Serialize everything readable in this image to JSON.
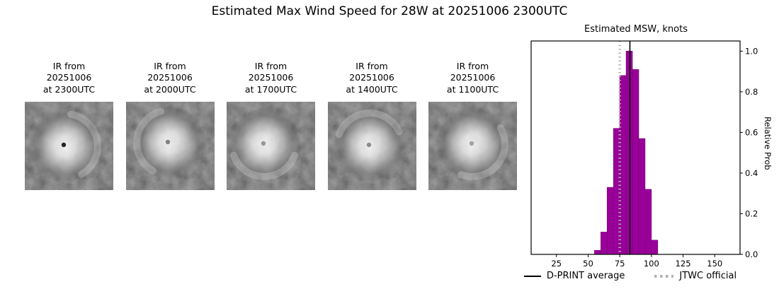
{
  "title": "Estimated Max Wind Speed for 28W at 20251006 2300UTC",
  "ir_panels": [
    {
      "label": "IR from\n20251006\nat 2300UTC"
    },
    {
      "label": "IR from\n20251006\nat 2000UTC"
    },
    {
      "label": "IR from\n20251006\nat 1700UTC"
    },
    {
      "label": "IR from\n20251006\nat 1400UTC"
    },
    {
      "label": "IR from\n20251006\nat 1100UTC"
    }
  ],
  "chart_data": {
    "type": "bar",
    "title": "Estimated MSW, knots",
    "ylabel": "Relative Prob",
    "xlabel": "",
    "xlim": [
      5,
      170
    ],
    "ylim": [
      0,
      1.05
    ],
    "xticks": [
      25,
      50,
      75,
      100,
      125,
      150
    ],
    "yticks": [
      0.0,
      0.2,
      0.4,
      0.6,
      0.8,
      1.0
    ],
    "bin_width": 5,
    "bins": [
      {
        "start": 55,
        "value": 0.02
      },
      {
        "start": 60,
        "value": 0.11
      },
      {
        "start": 65,
        "value": 0.33
      },
      {
        "start": 70,
        "value": 0.62
      },
      {
        "start": 75,
        "value": 0.88
      },
      {
        "start": 80,
        "value": 1.0
      },
      {
        "start": 85,
        "value": 0.91
      },
      {
        "start": 90,
        "value": 0.57
      },
      {
        "start": 95,
        "value": 0.32
      },
      {
        "start": 100,
        "value": 0.07
      }
    ],
    "bar_color": "#990099",
    "dprint_average": 83,
    "jtwc_official": 75,
    "legend": [
      {
        "label": "D-PRINT average",
        "style": "solid",
        "color": "#000000"
      },
      {
        "label": "JTWC official",
        "style": "dotted",
        "color": "#b3b3b3"
      }
    ]
  }
}
